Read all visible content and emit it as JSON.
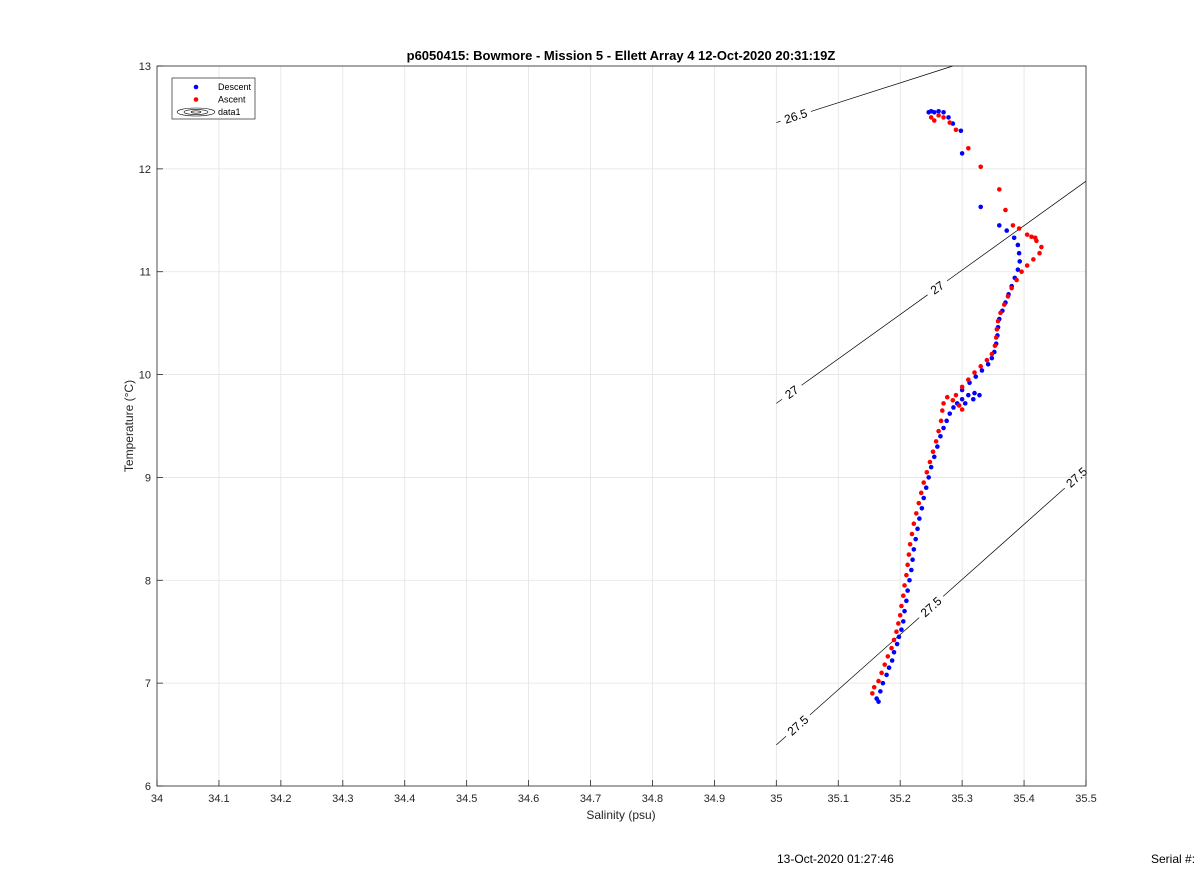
{
  "chart_data": {
    "type": "scatter",
    "title": "p6050415: Bowmore - Mission 5 - Ellett Array 4 12-Oct-2020 20:31:19Z",
    "xlabel": "Salinity (psu)",
    "ylabel": "Temperature (°C)",
    "xlim": [
      34,
      35.5
    ],
    "ylim": [
      6,
      13
    ],
    "x_ticks": [
      "34",
      "34.1",
      "34.2",
      "34.3",
      "34.4",
      "34.5",
      "34.6",
      "34.7",
      "34.8",
      "34.9",
      "35",
      "35.1",
      "35.2",
      "35.3",
      "35.4",
      "35.5"
    ],
    "y_ticks": [
      "6",
      "7",
      "8",
      "9",
      "10",
      "11",
      "12",
      "13"
    ],
    "grid": true,
    "legend_position": "top-left",
    "series": [
      {
        "name": "Descent",
        "color": "#0000ff",
        "points": [
          [
            35.165,
            6.82
          ],
          [
            35.162,
            6.85
          ],
          [
            35.168,
            6.92
          ],
          [
            35.172,
            7.0
          ],
          [
            35.178,
            7.08
          ],
          [
            35.182,
            7.15
          ],
          [
            35.187,
            7.22
          ],
          [
            35.19,
            7.3
          ],
          [
            35.195,
            7.38
          ],
          [
            35.198,
            7.45
          ],
          [
            35.202,
            7.52
          ],
          [
            35.205,
            7.6
          ],
          [
            35.207,
            7.7
          ],
          [
            35.21,
            7.8
          ],
          [
            35.212,
            7.9
          ],
          [
            35.215,
            8.0
          ],
          [
            35.218,
            8.1
          ],
          [
            35.22,
            8.2
          ],
          [
            35.222,
            8.3
          ],
          [
            35.225,
            8.4
          ],
          [
            35.228,
            8.5
          ],
          [
            35.231,
            8.6
          ],
          [
            35.235,
            8.7
          ],
          [
            35.238,
            8.8
          ],
          [
            35.242,
            8.9
          ],
          [
            35.246,
            9.0
          ],
          [
            35.25,
            9.1
          ],
          [
            35.255,
            9.2
          ],
          [
            35.26,
            9.3
          ],
          [
            35.265,
            9.4
          ],
          [
            35.27,
            9.48
          ],
          [
            35.275,
            9.55
          ],
          [
            35.28,
            9.62
          ],
          [
            35.286,
            9.68
          ],
          [
            35.292,
            9.72
          ],
          [
            35.3,
            9.76
          ],
          [
            35.31,
            9.8
          ],
          [
            35.32,
            9.82
          ],
          [
            35.328,
            9.8
          ],
          [
            35.318,
            9.76
          ],
          [
            35.305,
            9.72
          ],
          [
            35.295,
            9.7
          ],
          [
            35.3,
            9.85
          ],
          [
            35.312,
            9.92
          ],
          [
            35.322,
            9.98
          ],
          [
            35.332,
            10.04
          ],
          [
            35.342,
            10.1
          ],
          [
            35.348,
            10.16
          ],
          [
            35.352,
            10.22
          ],
          [
            35.355,
            10.3
          ],
          [
            35.357,
            10.38
          ],
          [
            35.358,
            10.46
          ],
          [
            35.36,
            10.54
          ],
          [
            35.365,
            10.62
          ],
          [
            35.37,
            10.7
          ],
          [
            35.375,
            10.78
          ],
          [
            35.38,
            10.86
          ],
          [
            35.385,
            10.94
          ],
          [
            35.39,
            11.02
          ],
          [
            35.393,
            11.1
          ],
          [
            35.392,
            11.18
          ],
          [
            35.39,
            11.26
          ],
          [
            35.384,
            11.33
          ],
          [
            35.372,
            11.4
          ],
          [
            35.36,
            11.45
          ],
          [
            35.33,
            11.63
          ],
          [
            35.3,
            12.15
          ],
          [
            35.298,
            12.37
          ],
          [
            35.285,
            12.44
          ],
          [
            35.278,
            12.5
          ],
          [
            35.27,
            12.55
          ],
          [
            35.262,
            12.56
          ],
          [
            35.255,
            12.55
          ],
          [
            35.25,
            12.56
          ],
          [
            35.246,
            12.55
          ]
        ]
      },
      {
        "name": "Ascent",
        "color": "#ff0000",
        "points": [
          [
            35.155,
            6.9
          ],
          [
            35.158,
            6.96
          ],
          [
            35.165,
            7.02
          ],
          [
            35.17,
            7.1
          ],
          [
            35.175,
            7.18
          ],
          [
            35.18,
            7.26
          ],
          [
            35.186,
            7.34
          ],
          [
            35.19,
            7.42
          ],
          [
            35.194,
            7.5
          ],
          [
            35.197,
            7.58
          ],
          [
            35.2,
            7.66
          ],
          [
            35.202,
            7.75
          ],
          [
            35.205,
            7.85
          ],
          [
            35.207,
            7.95
          ],
          [
            35.21,
            8.05
          ],
          [
            35.212,
            8.15
          ],
          [
            35.214,
            8.25
          ],
          [
            35.216,
            8.35
          ],
          [
            35.219,
            8.45
          ],
          [
            35.222,
            8.55
          ],
          [
            35.226,
            8.65
          ],
          [
            35.23,
            8.75
          ],
          [
            35.234,
            8.85
          ],
          [
            35.238,
            8.95
          ],
          [
            35.243,
            9.05
          ],
          [
            35.248,
            9.15
          ],
          [
            35.253,
            9.25
          ],
          [
            35.258,
            9.35
          ],
          [
            35.262,
            9.45
          ],
          [
            35.266,
            9.55
          ],
          [
            35.268,
            9.65
          ],
          [
            35.27,
            9.72
          ],
          [
            35.276,
            9.78
          ],
          [
            35.285,
            9.75
          ],
          [
            35.295,
            9.7
          ],
          [
            35.3,
            9.66
          ],
          [
            35.29,
            9.8
          ],
          [
            35.3,
            9.88
          ],
          [
            35.31,
            9.95
          ],
          [
            35.32,
            10.02
          ],
          [
            35.33,
            10.08
          ],
          [
            35.34,
            10.14
          ],
          [
            35.348,
            10.2
          ],
          [
            35.353,
            10.28
          ],
          [
            35.355,
            10.36
          ],
          [
            35.356,
            10.44
          ],
          [
            35.358,
            10.52
          ],
          [
            35.362,
            10.6
          ],
          [
            35.368,
            10.68
          ],
          [
            35.374,
            10.76
          ],
          [
            35.38,
            10.84
          ],
          [
            35.388,
            10.92
          ],
          [
            35.396,
            11.0
          ],
          [
            35.405,
            11.06
          ],
          [
            35.415,
            11.12
          ],
          [
            35.425,
            11.18
          ],
          [
            35.428,
            11.24
          ],
          [
            35.42,
            11.3
          ],
          [
            35.405,
            11.36
          ],
          [
            35.392,
            11.42
          ],
          [
            35.382,
            11.45
          ],
          [
            35.37,
            11.6
          ],
          [
            35.36,
            11.8
          ],
          [
            35.33,
            12.02
          ],
          [
            35.31,
            12.2
          ],
          [
            35.29,
            12.38
          ],
          [
            35.28,
            12.45
          ],
          [
            35.27,
            12.5
          ],
          [
            35.262,
            12.52
          ],
          [
            35.255,
            12.47
          ],
          [
            35.25,
            12.5
          ],
          [
            35.418,
            11.33
          ],
          [
            35.412,
            11.34
          ]
        ]
      }
    ],
    "contours": [
      {
        "label": "26.5",
        "x1": 35.0,
        "y1": 12.45,
        "x2": 35.285,
        "y2": 13.0,
        "label_at": 0.11
      },
      {
        "label": "27",
        "x1": 35.0,
        "y1": 9.72,
        "x2": 35.5,
        "y2": 11.88,
        "label_at": 0.05,
        "label_at2": 0.52
      },
      {
        "label": "27.5",
        "x1": 35.0,
        "y1": 6.4,
        "x2": 35.5,
        "y2": 9.08,
        "label_at": 0.07,
        "label_at2": 0.5,
        "label_at3": 0.97
      }
    ],
    "legend": {
      "entries": [
        {
          "label": "Descent",
          "kind": "marker",
          "color": "#0000ff"
        },
        {
          "label": "Ascent",
          "kind": "marker",
          "color": "#ff0000"
        },
        {
          "label": "data1",
          "kind": "contour",
          "color": "#000000"
        }
      ]
    }
  },
  "footer": {
    "timestamp": "13-Oct-2020 01:27:46",
    "serial_label": "Serial #:"
  }
}
